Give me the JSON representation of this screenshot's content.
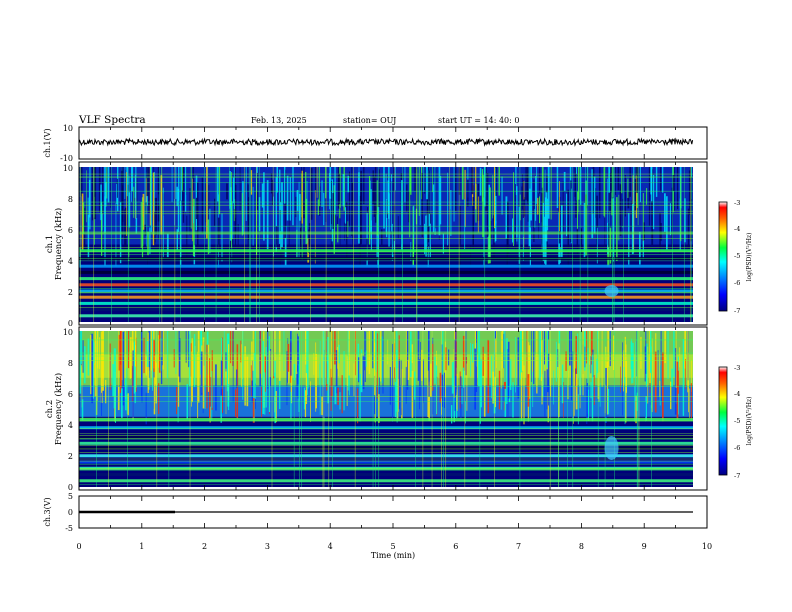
{
  "header": {
    "title": "VLF Spectra",
    "date": "Feb. 13, 2025",
    "station": "station= OUJ",
    "start": "start  UT  =   14: 40: 0"
  },
  "chart_data": [
    {
      "type": "line",
      "panel": "ch1",
      "ylabel": "ch.1(V)",
      "ylim": [
        -10,
        10
      ],
      "yticklabels": [
        "10",
        "-10"
      ],
      "x": [
        0,
        9.8
      ],
      "values": [
        0,
        0
      ],
      "note": "dense noise trace centered near -0.5 V"
    },
    {
      "type": "heatmap",
      "panel": "ch1-spectrogram",
      "ylabel": "ch.1\nFrequency (kHz)",
      "ylim": [
        0,
        10
      ],
      "yticklabels": [
        "10",
        "8",
        "6",
        "4",
        "2",
        "0"
      ],
      "colorbar": {
        "label": "log(PSD)(V²/Hz)",
        "range": [
          -7,
          -3
        ],
        "ticklabels": [
          "-3",
          "-4",
          "-5",
          "-6",
          "-7"
        ]
      }
    },
    {
      "type": "heatmap",
      "panel": "ch2-spectrogram",
      "ylabel": "ch.2\nFrequency (kHz)",
      "ylim": [
        0,
        10
      ],
      "yticklabels": [
        "10",
        "8",
        "6",
        "4",
        "2",
        "0"
      ],
      "colorbar": {
        "label": "log(PSD)(V²/Hz)",
        "range": [
          -7,
          -3
        ],
        "ticklabels": [
          "-3",
          "-4",
          "-5",
          "-6",
          "-7"
        ]
      }
    },
    {
      "type": "line",
      "panel": "ch3",
      "ylabel": "ch.3(V)",
      "ylim": [
        -5,
        5
      ],
      "yticklabels": [
        "5",
        "0",
        "-5"
      ],
      "x": [
        0,
        1.5,
        1.5,
        9.8
      ],
      "values": [
        -0.5,
        -0.5,
        -0.5,
        -0.5
      ],
      "note": "thicker segment 0–1.5 min"
    }
  ],
  "xaxis": {
    "label": "Time (min)",
    "xlim": [
      0,
      10
    ],
    "ticks": [
      "0",
      "1",
      "2",
      "3",
      "4",
      "5",
      "6",
      "7",
      "8",
      "9",
      "10"
    ]
  },
  "colors": {
    "colormap": [
      "#000080",
      "#0000ff",
      "#0080ff",
      "#00ffff",
      "#00ff00",
      "#ffff00",
      "#ff8000",
      "#ff0000",
      "#ffffff"
    ]
  }
}
